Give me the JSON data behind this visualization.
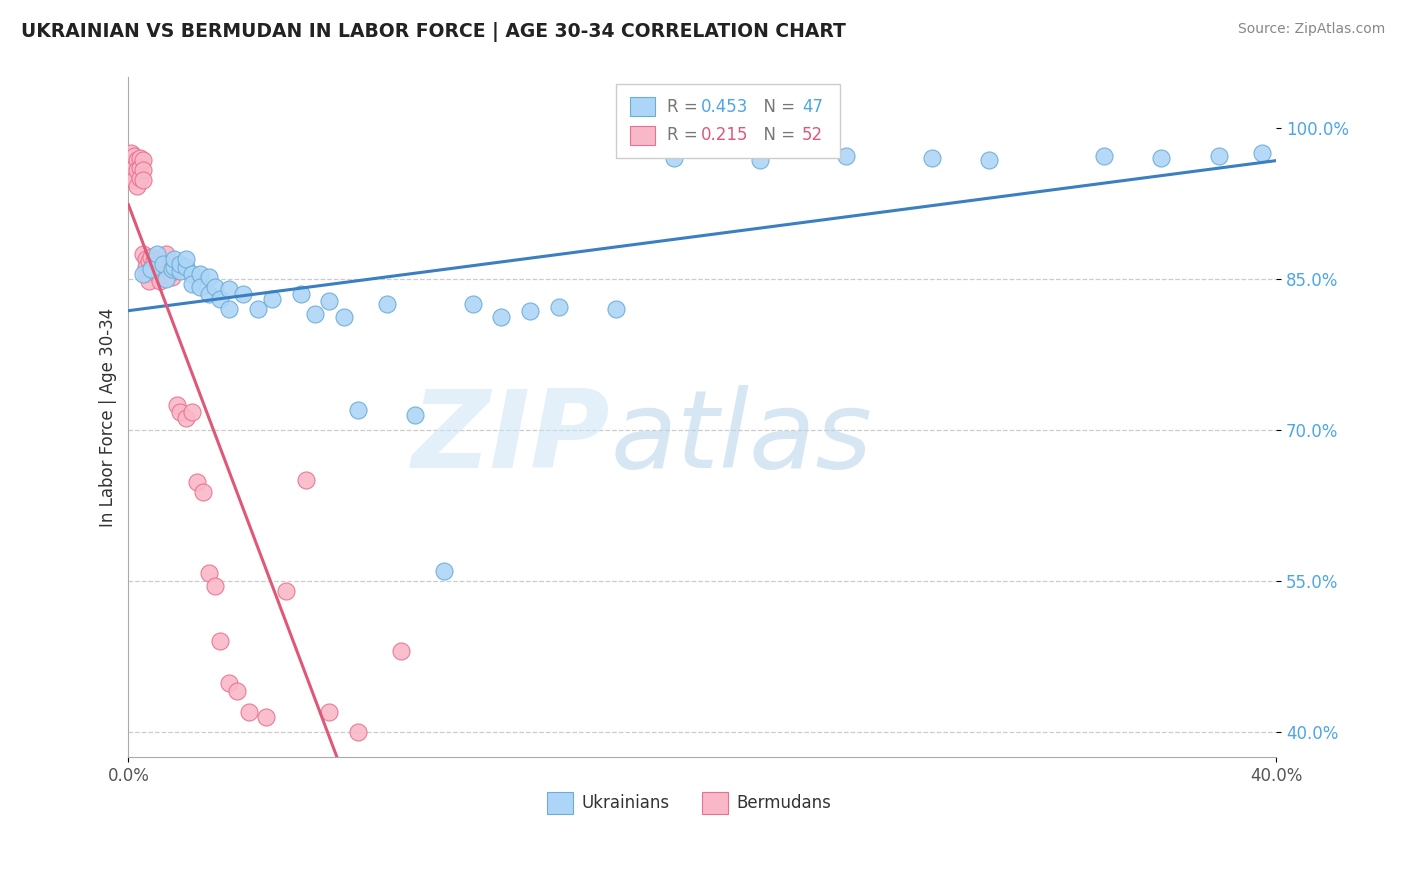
{
  "title": "UKRAINIAN VS BERMUDAN IN LABOR FORCE | AGE 30-34 CORRELATION CHART",
  "source": "Source: ZipAtlas.com",
  "ylabel": "In Labor Force | Age 30-34",
  "ytick_labels": [
    "100.0%",
    "85.0%",
    "70.0%",
    "55.0%",
    "40.0%"
  ],
  "ytick_values": [
    1.0,
    0.85,
    0.7,
    0.55,
    0.4
  ],
  "xlim": [
    0.0,
    0.4
  ],
  "ylim": [
    0.375,
    1.05
  ],
  "legend_blue_r": "0.453",
  "legend_blue_n": "47",
  "legend_pink_r": "0.215",
  "legend_pink_n": "52",
  "blue_color": "#add5f7",
  "pink_color": "#f9b8c8",
  "blue_edge_color": "#6aadd5",
  "pink_edge_color": "#e87090",
  "blue_line_color": "#3a7fc1",
  "pink_line_color": "#e05878",
  "blue_scatter_x": [
    0.005,
    0.008,
    0.01,
    0.012,
    0.013,
    0.015,
    0.016,
    0.016,
    0.018,
    0.018,
    0.02,
    0.02,
    0.022,
    0.022,
    0.025,
    0.025,
    0.028,
    0.028,
    0.03,
    0.032,
    0.035,
    0.035,
    0.04,
    0.045,
    0.05,
    0.06,
    0.065,
    0.07,
    0.075,
    0.08,
    0.09,
    0.1,
    0.11,
    0.12,
    0.13,
    0.14,
    0.15,
    0.17,
    0.19,
    0.22,
    0.25,
    0.28,
    0.3,
    0.34,
    0.36,
    0.38,
    0.395
  ],
  "blue_scatter_y": [
    0.855,
    0.86,
    0.875,
    0.865,
    0.85,
    0.86,
    0.862,
    0.87,
    0.858,
    0.865,
    0.862,
    0.87,
    0.855,
    0.845,
    0.855,
    0.842,
    0.852,
    0.835,
    0.842,
    0.83,
    0.84,
    0.82,
    0.835,
    0.82,
    0.83,
    0.835,
    0.815,
    0.828,
    0.812,
    0.72,
    0.825,
    0.715,
    0.56,
    0.825,
    0.812,
    0.818,
    0.822,
    0.82,
    0.97,
    0.968,
    0.972,
    0.97,
    0.968,
    0.972,
    0.97,
    0.972,
    0.975
  ],
  "pink_scatter_x": [
    0.001,
    0.001,
    0.001,
    0.002,
    0.002,
    0.002,
    0.003,
    0.003,
    0.003,
    0.004,
    0.004,
    0.004,
    0.005,
    0.005,
    0.005,
    0.005,
    0.006,
    0.006,
    0.006,
    0.007,
    0.007,
    0.007,
    0.008,
    0.008,
    0.009,
    0.009,
    0.01,
    0.01,
    0.011,
    0.012,
    0.013,
    0.014,
    0.015,
    0.016,
    0.017,
    0.018,
    0.02,
    0.022,
    0.024,
    0.026,
    0.028,
    0.03,
    0.032,
    0.035,
    0.038,
    0.042,
    0.048,
    0.055,
    0.062,
    0.07,
    0.08,
    0.095
  ],
  "pink_scatter_y": [
    0.975,
    0.965,
    0.958,
    0.972,
    0.96,
    0.948,
    0.968,
    0.958,
    0.942,
    0.97,
    0.96,
    0.95,
    0.968,
    0.958,
    0.948,
    0.875,
    0.87,
    0.862,
    0.855,
    0.868,
    0.858,
    0.848,
    0.872,
    0.86,
    0.868,
    0.858,
    0.865,
    0.855,
    0.848,
    0.855,
    0.875,
    0.858,
    0.852,
    0.858,
    0.725,
    0.718,
    0.712,
    0.718,
    0.648,
    0.638,
    0.558,
    0.545,
    0.49,
    0.448,
    0.44,
    0.42,
    0.415,
    0.54,
    0.65,
    0.42,
    0.4,
    0.48
  ]
}
